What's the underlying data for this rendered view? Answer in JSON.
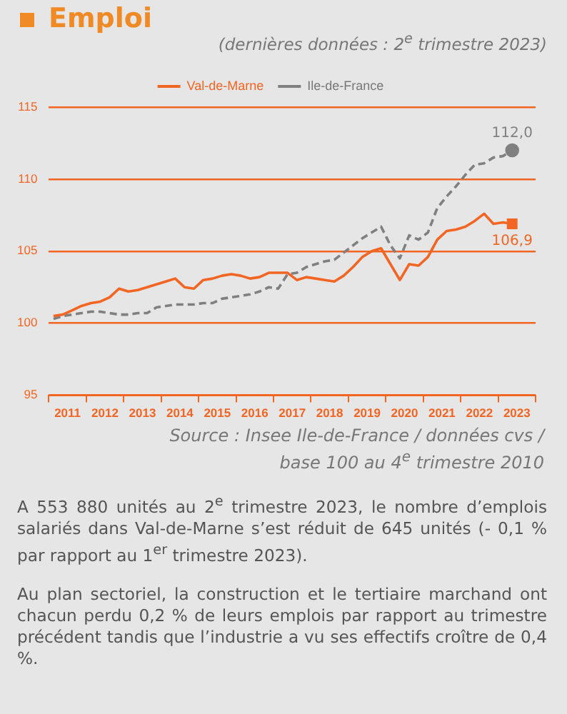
{
  "chart_data": {
    "type": "line",
    "title": "Emploi",
    "subtitle": "(dernières données : 2$^{e}$ trimestre 2023)",
    "x": [
      2011.125,
      2011.375,
      2011.625,
      2011.875,
      2012.125,
      2012.375,
      2012.625,
      2012.875,
      2013.125,
      2013.375,
      2013.625,
      2013.875,
      2014.125,
      2014.375,
      2014.625,
      2014.875,
      2015.125,
      2015.375,
      2015.625,
      2015.875,
      2016.125,
      2016.375,
      2016.625,
      2016.875,
      2017.125,
      2017.375,
      2017.625,
      2017.875,
      2018.125,
      2018.375,
      2018.625,
      2018.875,
      2019.125,
      2019.375,
      2019.625,
      2019.875,
      2020.125,
      2020.375,
      2020.625,
      2020.875,
      2021.125,
      2021.375,
      2021.625,
      2021.875,
      2022.125,
      2022.375,
      2022.625,
      2022.875,
      2023.125,
      2023.375
    ],
    "series": [
      {
        "name": "Val-de-Marne",
        "color": "#f26522",
        "values": [
          100.5,
          100.6,
          100.9,
          101.2,
          101.4,
          101.5,
          101.8,
          102.4,
          102.2,
          102.3,
          102.5,
          102.7,
          102.9,
          103.1,
          102.5,
          102.4,
          103.0,
          103.1,
          103.3,
          103.4,
          103.3,
          103.1,
          103.2,
          103.5,
          103.5,
          103.5,
          103.0,
          103.2,
          103.1,
          103.0,
          102.9,
          103.3,
          103.9,
          104.6,
          105.0,
          105.2,
          104.1,
          103.0,
          104.1,
          104.0,
          104.6,
          105.8,
          106.4,
          106.5,
          106.7,
          107.1,
          107.6,
          106.9,
          107.0,
          106.9
        ],
        "value_labels": [
          null,
          null,
          null,
          null,
          null,
          null,
          null,
          null,
          null,
          null,
          null,
          null,
          null,
          null,
          null,
          null,
          null,
          null,
          null,
          null,
          null,
          null,
          null,
          null,
          null,
          null,
          null,
          null,
          null,
          null,
          null,
          null,
          null,
          null,
          null,
          null,
          null,
          null,
          null,
          null,
          null,
          null,
          null,
          null,
          null,
          null,
          null,
          null,
          null,
          "106,9"
        ]
      },
      {
        "name": "Ile-de-France",
        "color": "#808080",
        "line_style": "dashed",
        "values": [
          100.3,
          100.5,
          100.6,
          100.7,
          100.8,
          100.8,
          100.7,
          100.6,
          100.6,
          100.7,
          100.7,
          101.1,
          101.2,
          101.3,
          101.3,
          101.3,
          101.4,
          101.4,
          101.7,
          101.8,
          101.9,
          102.0,
          102.2,
          102.5,
          102.4,
          103.4,
          103.5,
          103.9,
          104.1,
          104.3,
          104.4,
          104.9,
          105.4,
          105.9,
          106.3,
          106.7,
          105.4,
          104.5,
          106.1,
          105.8,
          106.3,
          108.0,
          108.8,
          109.5,
          110.3,
          111.0,
          111.1,
          111.5,
          111.6,
          112.0
        ],
        "value_labels": [
          null,
          null,
          null,
          null,
          null,
          null,
          null,
          null,
          null,
          null,
          null,
          null,
          null,
          null,
          null,
          null,
          null,
          null,
          null,
          null,
          null,
          null,
          null,
          null,
          null,
          null,
          null,
          null,
          null,
          null,
          null,
          null,
          null,
          null,
          null,
          null,
          null,
          null,
          null,
          null,
          null,
          null,
          null,
          null,
          null,
          null,
          null,
          null,
          null,
          "112,0"
        ]
      }
    ],
    "xlim": [
      2011,
      2024
    ],
    "xticks": [
      {
        "value": 2011,
        "label": null
      },
      {
        "value": 2011.5,
        "label": "2011"
      },
      {
        "value": 2012,
        "label": null
      },
      {
        "value": 2012.5,
        "label": "2012"
      },
      {
        "value": 2013,
        "label": null
      },
      {
        "value": 2013.5,
        "label": "2013"
      },
      {
        "value": 2014,
        "label": null
      },
      {
        "value": 2014.5,
        "label": "2014"
      },
      {
        "value": 2015,
        "label": null
      },
      {
        "value": 2015.5,
        "label": "2015"
      },
      {
        "value": 2016,
        "label": null
      },
      {
        "value": 2016.5,
        "label": "2016"
      },
      {
        "value": 2017,
        "label": null
      },
      {
        "value": 2017.5,
        "label": "2017"
      },
      {
        "value": 2018,
        "label": null
      },
      {
        "value": 2018.5,
        "label": "2018"
      },
      {
        "value": 2019,
        "label": null
      },
      {
        "value": 2019.5,
        "label": "2019"
      },
      {
        "value": 2020,
        "label": null
      },
      {
        "value": 2020.5,
        "label": "2020"
      },
      {
        "value": 2021,
        "label": null
      },
      {
        "value": 2021.5,
        "label": "2021"
      },
      {
        "value": 2022,
        "label": null
      },
      {
        "value": 2022.5,
        "label": "2022"
      },
      {
        "value": 2023,
        "label": null
      },
      {
        "value": 2023.5,
        "label": "2023"
      },
      {
        "value": 2024,
        "label": null
      }
    ],
    "ylim": [
      95,
      115
    ],
    "yticks": [
      95,
      100,
      105,
      110,
      115
    ],
    "grid": "y",
    "legend": "top",
    "annotations": [
      "Source : Insee Ile-de-France / données cvs / base 100 au 4$^{e}$ trimestre 2010",
      "A 553 880 unités au 2$^{e}$ trimestre 2023, le nombre d’emplois salariés dans Val-de-Marne s’est réduit de 645 unités (- 0,1 % par rapport au 1$^{er}$ trimestre 2023).",
      "Au plan sectoriel, la construction et le tertiaire marchand ont chacun perdu 0,2 % de leurs emplois par rapport au trimestre précédent tandis que l’industrie a vu ses effectifs croître de 0,4 %."
    ]
  }
}
